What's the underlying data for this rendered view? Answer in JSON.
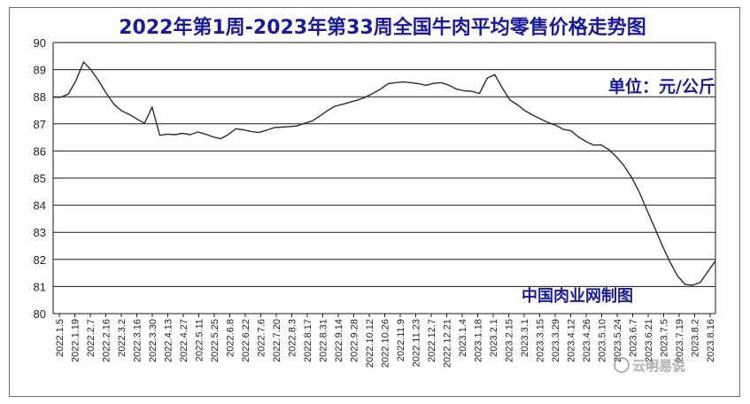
{
  "colors": {
    "line": "#2a2a3a",
    "grid": "#1a1a1a",
    "title": "#1a1a9c",
    "text": "#222222"
  },
  "chart_data": {
    "type": "line",
    "title": "2022年第1周-2023年第33周全国牛肉平均零售价格走势图",
    "unit_label": "单位：元/公斤",
    "source_label": "中国肉业网制图",
    "watermark": "云明易说",
    "ylim": [
      80,
      90
    ],
    "yticks": [
      80,
      81,
      82,
      83,
      84,
      85,
      86,
      87,
      88,
      89,
      90
    ],
    "grid": true,
    "xticks": [
      "2022.1.5",
      "2022.1.19",
      "2022.2.7",
      "2022.2.16",
      "2022.3.2",
      "2022.3.16",
      "2022.3.30",
      "2022.4.13",
      "2022.4.27",
      "2022.5.11",
      "2022.5.25",
      "2022.6.8",
      "2022.6.22",
      "2022.7.6",
      "2022.7.20",
      "2022.8.3",
      "2022.8.17",
      "2022.8.31",
      "2022.9.14",
      "2022.9.28",
      "2022.10.12",
      "2022.10.26",
      "2022.11.9",
      "2022.11.23",
      "2022.12.7",
      "2022.12.21",
      "2023.1.4",
      "2023.1.18",
      "2023.2.1",
      "2023.2.15",
      "2023.3.1",
      "2023.3.15",
      "2023.3.29",
      "2023.4.12",
      "2023.4.26",
      "2023.5.10",
      "2023.5.24",
      "2023.6.7",
      "2023.6.21",
      "2023.7.5",
      "2023.7.19",
      "2023.8.2",
      "2023.8.16"
    ],
    "series": [
      {
        "values": [
          87.98,
          87.98,
          88.1,
          88.6,
          89.28,
          88.98,
          88.58,
          88.12,
          87.72,
          87.48,
          87.35,
          87.18,
          87.02,
          87.62,
          86.58,
          86.62,
          86.6,
          86.65,
          86.6,
          86.7,
          86.62,
          86.52,
          86.45,
          86.6,
          86.82,
          86.78,
          86.72,
          86.68,
          86.76,
          86.86,
          86.88,
          86.9,
          86.92,
          87.02,
          87.1,
          87.28,
          87.48,
          87.65,
          87.72,
          87.8,
          87.88,
          87.98,
          88.12,
          88.28,
          88.48,
          88.52,
          88.55,
          88.52,
          88.48,
          88.42,
          88.5,
          88.52,
          88.42,
          88.28,
          88.22,
          88.2,
          88.12,
          88.68,
          88.82,
          88.32,
          87.88,
          87.7,
          87.48,
          87.32,
          87.18,
          87.05,
          86.95,
          86.8,
          86.75,
          86.52,
          86.35,
          86.22,
          86.22,
          86.05,
          85.78,
          85.45,
          85.02,
          84.48,
          83.82,
          83.18,
          82.52,
          81.92,
          81.4,
          81.08,
          81.05,
          81.15,
          81.55,
          81.95
        ]
      }
    ]
  }
}
